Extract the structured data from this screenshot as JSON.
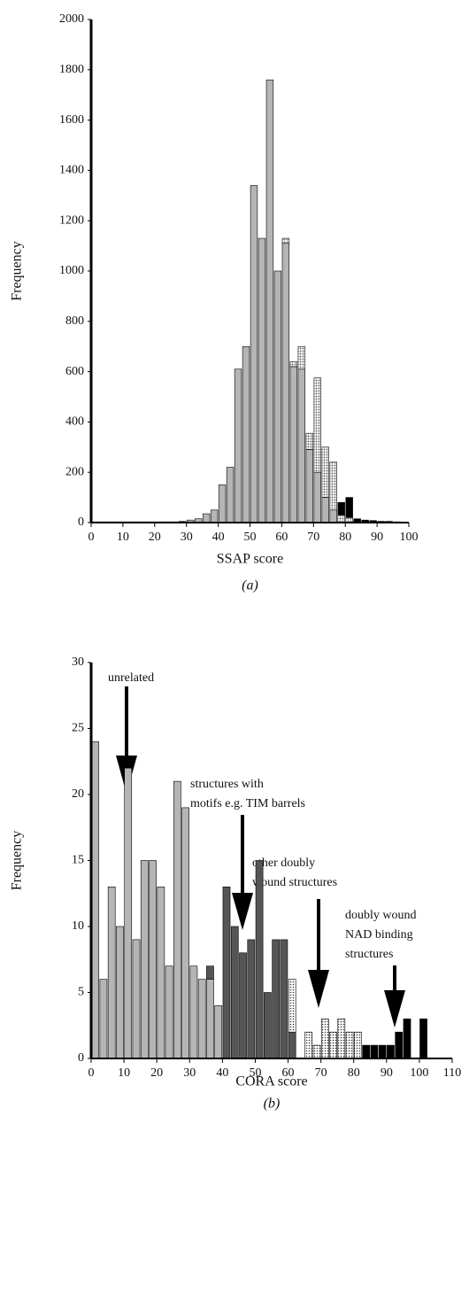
{
  "chart_data": [
    {
      "type": "histogram",
      "caption": "(a)",
      "x_label": "SSAP score",
      "y_label": "Frequency",
      "stacked": true,
      "bins": [
        0,
        2.5,
        5,
        7.5,
        10,
        12.5,
        15,
        17.5,
        20,
        22.5,
        25,
        27.5,
        30,
        32.5,
        35,
        37.5,
        40,
        42.5,
        45,
        47.5,
        50,
        52.5,
        55,
        57.5,
        60,
        62.5,
        65,
        67.5,
        70,
        72.5,
        75,
        77.5,
        80,
        82.5,
        85,
        87.5,
        90,
        92.5,
        95,
        97.5,
        100
      ],
      "series": [
        {
          "color": "#b5b5b5",
          "values": [
            3,
            3,
            3,
            3,
            3,
            3,
            3,
            3,
            3,
            3,
            3,
            5,
            10,
            15,
            35,
            50,
            150,
            220,
            610,
            700,
            1340,
            1130,
            1760,
            1000,
            1110,
            620,
            610,
            290,
            200,
            100,
            50,
            0,
            0,
            0,
            0,
            0,
            0,
            0,
            0,
            0
          ]
        },
        {
          "color": "#ffffff",
          "pattern": "grid",
          "values": [
            0,
            0,
            0,
            0,
            0,
            0,
            0,
            0,
            0,
            0,
            0,
            0,
            0,
            0,
            0,
            0,
            0,
            0,
            0,
            0,
            0,
            0,
            0,
            0,
            20,
            20,
            90,
            65,
            375,
            200,
            190,
            30,
            20,
            0,
            0,
            0,
            0,
            0,
            0,
            0
          ]
        },
        {
          "color": "#000000",
          "values": [
            0,
            0,
            0,
            0,
            0,
            0,
            0,
            0,
            0,
            0,
            0,
            0,
            0,
            0,
            0,
            0,
            0,
            0,
            0,
            0,
            0,
            0,
            0,
            0,
            0,
            0,
            0,
            0,
            0,
            0,
            0,
            50,
            80,
            15,
            10,
            8,
            5,
            5,
            3,
            2
          ]
        }
      ],
      "xlim": [
        0,
        100
      ],
      "xticks": [
        0,
        10,
        20,
        30,
        40,
        50,
        60,
        70,
        80,
        90,
        100
      ],
      "ylim": [
        0,
        2000
      ],
      "yticks": [
        0,
        200,
        400,
        600,
        800,
        1000,
        1200,
        1400,
        1600,
        1800,
        2000
      ]
    },
    {
      "type": "histogram",
      "caption": "(b)",
      "x_label": "CORA score",
      "y_label": "Frequency",
      "stacked": true,
      "bins": [
        0,
        2.5,
        5,
        7.5,
        10,
        12.5,
        15,
        17.5,
        20,
        22.5,
        25,
        27.5,
        30,
        32.5,
        35,
        37.5,
        40,
        42.5,
        45,
        47.5,
        50,
        52.5,
        55,
        57.5,
        60,
        62.5,
        65,
        67.5,
        70,
        72.5,
        75,
        77.5,
        80,
        82.5,
        85,
        87.5,
        90,
        92.5,
        95,
        97.5,
        100,
        102.5,
        105,
        107.5,
        110
      ],
      "series": [
        {
          "color": "#b5b5b5",
          "values": [
            24,
            6,
            13,
            10,
            22,
            9,
            15,
            15,
            13,
            7,
            21,
            19,
            7,
            6,
            6,
            4,
            0,
            0,
            0,
            0,
            0,
            0,
            0,
            0,
            0,
            0,
            0,
            0,
            0,
            0,
            0,
            0,
            0,
            0,
            0,
            0,
            0,
            0,
            0,
            0,
            0,
            0,
            0,
            0
          ]
        },
        {
          "color": "#555555",
          "values": [
            0,
            0,
            0,
            0,
            0,
            0,
            0,
            0,
            0,
            0,
            0,
            0,
            0,
            0,
            1,
            0,
            13,
            10,
            8,
            9,
            15,
            5,
            9,
            9,
            2,
            0,
            0,
            0,
            0,
            0,
            0,
            0,
            0,
            0,
            0,
            0,
            0,
            0,
            0,
            0,
            0,
            0,
            0,
            0
          ]
        },
        {
          "color": "#ffffff",
          "pattern": "dots",
          "values": [
            0,
            0,
            0,
            0,
            0,
            0,
            0,
            0,
            0,
            0,
            0,
            0,
            0,
            0,
            0,
            0,
            0,
            0,
            0,
            0,
            0,
            0,
            0,
            0,
            4,
            0,
            2,
            1,
            3,
            2,
            3,
            2,
            2,
            0,
            0,
            0,
            0,
            0,
            0,
            0,
            0,
            0,
            0,
            0
          ]
        },
        {
          "color": "#000000",
          "values": [
            0,
            0,
            0,
            0,
            0,
            0,
            0,
            0,
            0,
            0,
            0,
            0,
            0,
            0,
            0,
            0,
            0,
            0,
            0,
            0,
            0,
            0,
            0,
            0,
            0,
            0,
            0,
            0,
            0,
            0,
            0,
            0,
            0,
            1,
            1,
            1,
            1,
            2,
            3,
            0,
            3,
            0,
            0,
            0
          ]
        }
      ],
      "annotations": [
        [
          "unrelated"
        ],
        [
          "structures with",
          "motifs e.g. TIM barrels"
        ],
        [
          "other doubly",
          "wound structures"
        ],
        [
          "doubly wound",
          "NAD binding",
          "structures"
        ]
      ],
      "xlim": [
        0,
        110
      ],
      "xticks": [
        0,
        10,
        20,
        30,
        40,
        50,
        60,
        70,
        80,
        90,
        100,
        110
      ],
      "ylim": [
        0,
        30
      ],
      "yticks": [
        0,
        5,
        10,
        15,
        20,
        25,
        30
      ]
    }
  ]
}
